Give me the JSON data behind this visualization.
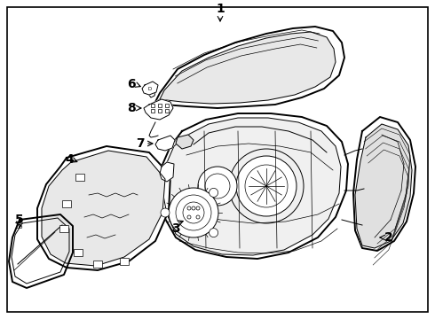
{
  "background_color": "#ffffff",
  "border_color": "#000000",
  "line_color": "#000000",
  "label_color": "#000000",
  "font_size": 10,
  "figsize": [
    4.9,
    3.6
  ],
  "dpi": 100,
  "lw_main": 1.4,
  "lw_inner": 0.7,
  "lw_detail": 0.5
}
